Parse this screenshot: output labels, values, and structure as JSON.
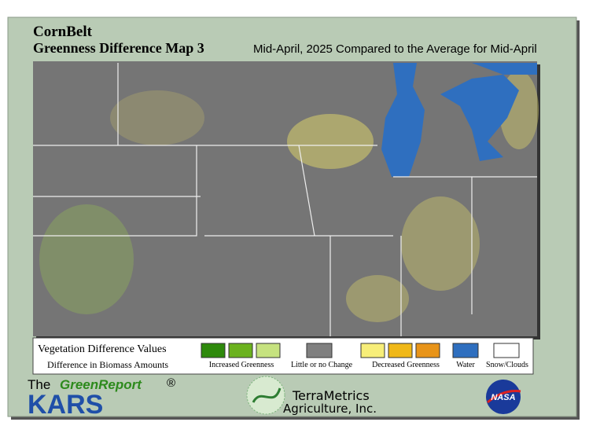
{
  "header": {
    "region": "CornBelt",
    "title": "Greenness Difference Map 3",
    "subtitle": "Mid-April, 2025 Compared to the Average for Mid-April"
  },
  "legend": {
    "title": "Vegetation Difference Values",
    "subtitle": "Difference in Biomass Amounts",
    "items": [
      "Increased Greenness",
      "Little or no Change",
      "Decreased Greenness",
      "Water",
      "Snow/Clouds"
    ]
  },
  "footer": {
    "the": "The",
    "green_report": "GreenReport",
    "registered": "®",
    "kars": "KARS",
    "company_line1": "TerraMetrics",
    "company_line2": "Agriculture, Inc.",
    "nasa": "NASA"
  }
}
